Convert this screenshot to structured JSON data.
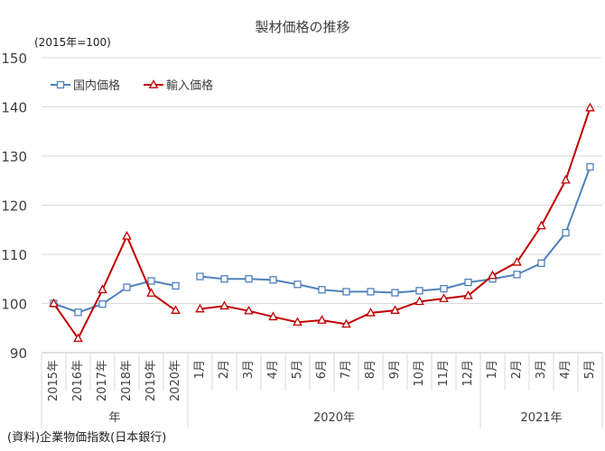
{
  "chart_data": {
    "type": "line",
    "title": "製材価格の推移",
    "unit_label": "(2015年=100)",
    "source": "(資料)企業物価指数(日本銀行)",
    "ylim": [
      90,
      150
    ],
    "yticks": [
      90,
      100,
      110,
      120,
      130,
      140,
      150
    ],
    "grid": true,
    "legend_position": "top-left",
    "categories": [
      "2015年",
      "2016年",
      "2017年",
      "2018年",
      "2019年",
      "2020年",
      "1月",
      "2月",
      "3月",
      "4月",
      "5月",
      "6月",
      "7月",
      "8月",
      "9月",
      "10月",
      "11月",
      "12月",
      "1月",
      "2月",
      "3月",
      "4月",
      "5月"
    ],
    "category_groups": [
      {
        "label": "年",
        "start": 0,
        "end": 5
      },
      {
        "label": "2020年",
        "start": 6,
        "end": 17
      },
      {
        "label": "2021年",
        "start": 18,
        "end": 22
      }
    ],
    "series": [
      {
        "name": "国内価格",
        "color": "#4f81bd",
        "marker": "square",
        "segments": [
          [
            100.0,
            98.2,
            99.9,
            103.3,
            104.6,
            103.6
          ],
          [
            105.5,
            105.0,
            105.0,
            104.8,
            103.9,
            102.8,
            102.4,
            102.4,
            102.2,
            102.6,
            103.0,
            104.3,
            105.0,
            105.9,
            108.2,
            114.4,
            127.8
          ]
        ]
      },
      {
        "name": "輸入価格",
        "color": "#c00000",
        "marker": "triangle",
        "segments": [
          [
            100.0,
            92.9,
            102.8,
            113.7,
            102.1,
            98.6
          ],
          [
            98.9,
            99.5,
            98.5,
            97.3,
            96.2,
            96.6,
            95.8,
            98.1,
            98.6,
            100.4,
            101.0,
            101.6,
            105.7,
            108.4,
            115.8,
            125.1,
            139.8
          ]
        ]
      }
    ]
  }
}
